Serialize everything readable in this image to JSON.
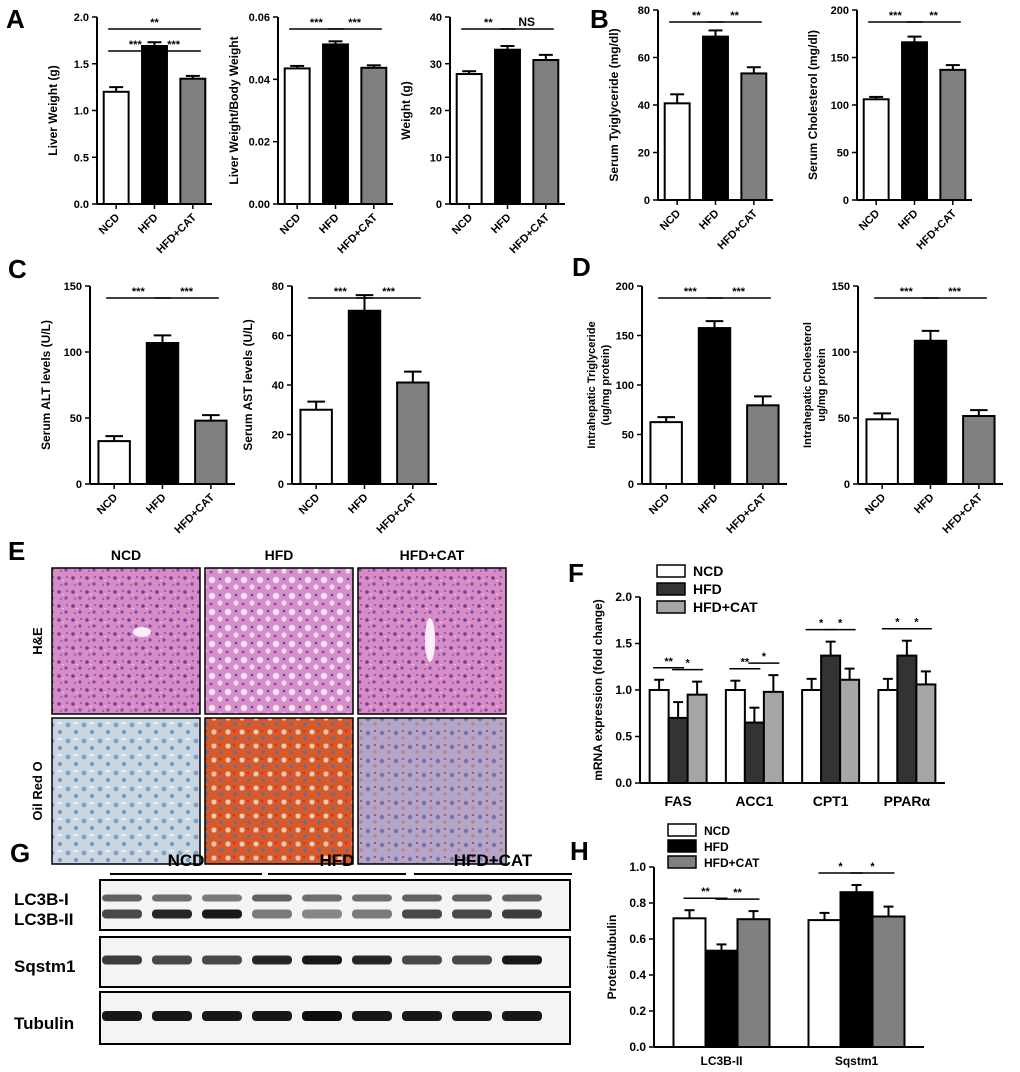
{
  "figure": {
    "groups3": [
      "NCD",
      "HFD",
      "HFD+CAT"
    ],
    "colors": {
      "NCD": "#ffffff",
      "HFD": "#000000",
      "HFD+CAT": "#808080",
      "HFD_F": "#333333",
      "HFD+CAT_F": "#a6a6a6"
    },
    "panel_letters": [
      "A",
      "B",
      "C",
      "D",
      "E",
      "F",
      "G",
      "H"
    ],
    "histology": {
      "columns": [
        "NCD",
        "HFD",
        "HFD+CAT"
      ],
      "rows": [
        "H&E",
        "Oil Red O"
      ]
    },
    "western": {
      "groups": [
        "NCD",
        "HFD",
        "HFD+CAT"
      ],
      "lanes_per_group": 3,
      "bands": [
        "LC3B-I",
        "LC3B-II",
        "Sqstm1",
        "Tubulin"
      ]
    }
  },
  "chart_data": [
    {
      "id": "A1",
      "type": "bar",
      "categories": [
        "NCD",
        "HFD",
        "HFD+CAT"
      ],
      "values": [
        1.2,
        1.69,
        1.34
      ],
      "errors": [
        0.05,
        0.04,
        0.03
      ],
      "ylabel": "Liver Weight (g)",
      "ylim": [
        0,
        2.0
      ],
      "yticks": [
        "0.0",
        "0.5",
        "1.0",
        "1.5",
        "2.0"
      ],
      "sig": [
        {
          "a": 0,
          "b": 1,
          "text": "***"
        },
        {
          "a": 1,
          "b": 2,
          "text": "***"
        },
        {
          "a": 0,
          "b": 2,
          "text": "**"
        }
      ]
    },
    {
      "id": "A2",
      "type": "bar",
      "categories": [
        "NCD",
        "HFD",
        "HFD+CAT"
      ],
      "values": [
        0.0435,
        0.0512,
        0.0437
      ],
      "errors": [
        0.0008,
        0.001,
        0.0008
      ],
      "ylabel": "Liver Weight/Body Weight",
      "ylim": [
        0,
        0.06
      ],
      "yticks": [
        "0.00",
        "0.02",
        "0.04",
        "0.06"
      ],
      "sig": [
        {
          "a": 0,
          "b": 1,
          "text": "***"
        },
        {
          "a": 1,
          "b": 2,
          "text": "***"
        }
      ]
    },
    {
      "id": "A3",
      "type": "bar",
      "categories": [
        "NCD",
        "HFD",
        "HFD+CAT"
      ],
      "values": [
        27.8,
        33.0,
        30.8
      ],
      "errors": [
        0.6,
        0.8,
        1.1
      ],
      "ylabel": "Weight (g)",
      "ylim": [
        0,
        40
      ],
      "yticks": [
        "0",
        "10",
        "20",
        "30",
        "40"
      ],
      "sig": [
        {
          "a": 0,
          "b": 1,
          "text": "**"
        },
        {
          "a": 1,
          "b": 2,
          "text": "NS"
        }
      ]
    },
    {
      "id": "B1",
      "type": "bar",
      "categories": [
        "NCD",
        "HFD",
        "HFD+CAT"
      ],
      "values": [
        40.7,
        68.8,
        53.3
      ],
      "errors": [
        3.8,
        2.6,
        2.6
      ],
      "ylabel": "Serum Tyiglyceride (mg/dl)",
      "ylim": [
        0,
        80
      ],
      "yticks": [
        "0",
        "20",
        "40",
        "60",
        "80"
      ],
      "sig": [
        {
          "a": 0,
          "b": 1,
          "text": "**"
        },
        {
          "a": 1,
          "b": 2,
          "text": "**"
        }
      ]
    },
    {
      "id": "B2",
      "type": "bar",
      "categories": [
        "NCD",
        "HFD",
        "HFD+CAT"
      ],
      "values": [
        106,
        166,
        137
      ],
      "errors": [
        2.5,
        6,
        5
      ],
      "ylabel": "Serum Cholesterol (mg/dl)",
      "ylim": [
        0,
        200
      ],
      "yticks": [
        "0",
        "50",
        "100",
        "150",
        "200"
      ],
      "sig": [
        {
          "a": 0,
          "b": 1,
          "text": "***"
        },
        {
          "a": 1,
          "b": 2,
          "text": "**"
        }
      ]
    },
    {
      "id": "C1",
      "type": "bar",
      "categories": [
        "NCD",
        "HFD",
        "HFD+CAT"
      ],
      "values": [
        32.5,
        106.8,
        48
      ],
      "errors": [
        3.8,
        5.8,
        4.2
      ],
      "ylabel": "Serum ALT levels (U/L)",
      "ylim": [
        0,
        150
      ],
      "yticks": [
        "0",
        "50",
        "100",
        "150"
      ],
      "sig": [
        {
          "a": 0,
          "b": 1,
          "text": "***"
        },
        {
          "a": 1,
          "b": 2,
          "text": "***"
        }
      ]
    },
    {
      "id": "C2",
      "type": "bar",
      "categories": [
        "NCD",
        "HFD",
        "HFD+CAT"
      ],
      "values": [
        30,
        70,
        41
      ],
      "errors": [
        3.3,
        6.3,
        4.4
      ],
      "ylabel": "Serum AST levels (U/L)",
      "ylim": [
        0,
        80
      ],
      "yticks": [
        "0",
        "20",
        "40",
        "60",
        "80"
      ],
      "sig": [
        {
          "a": 0,
          "b": 1,
          "text": "***"
        },
        {
          "a": 1,
          "b": 2,
          "text": "***"
        }
      ]
    },
    {
      "id": "D1",
      "type": "bar",
      "categories": [
        "NCD",
        "HFD",
        "HFD+CAT"
      ],
      "values": [
        62.5,
        157.5,
        79.5
      ],
      "errors": [
        5,
        7,
        9
      ],
      "ylabel": [
        "Intrahepatic Triglyceride",
        "(ug/mg protein)"
      ],
      "ylim": [
        0,
        200
      ],
      "yticks": [
        "0",
        "50",
        "100",
        "150",
        "200"
      ],
      "sig": [
        {
          "a": 0,
          "b": 1,
          "text": "***"
        },
        {
          "a": 1,
          "b": 2,
          "text": "***"
        }
      ]
    },
    {
      "id": "D2",
      "type": "bar",
      "categories": [
        "NCD",
        "HFD",
        "HFD+CAT"
      ],
      "values": [
        49,
        108.5,
        51.5
      ],
      "errors": [
        4.5,
        7.5,
        4.5
      ],
      "ylabel": [
        "Intrahepatic Cholesterol",
        "ug/mg protein"
      ],
      "ylim": [
        0,
        150
      ],
      "yticks": [
        "0",
        "50",
        "100",
        "150"
      ],
      "sig": [
        {
          "a": 0,
          "b": 1,
          "text": "***"
        },
        {
          "a": 1,
          "b": 2,
          "text": "***"
        }
      ]
    },
    {
      "id": "F",
      "type": "bar",
      "categories": [
        "FAS",
        "ACC1",
        "CPT1",
        "PPARα"
      ],
      "series": [
        {
          "name": "NCD",
          "values": [
            1.0,
            1.0,
            1.0,
            1.0
          ],
          "errors": [
            0.11,
            0.1,
            0.12,
            0.12
          ]
        },
        {
          "name": "HFD",
          "values": [
            0.7,
            0.65,
            1.37,
            1.37
          ],
          "errors": [
            0.17,
            0.16,
            0.15,
            0.16
          ]
        },
        {
          "name": "HFD+CAT",
          "values": [
            0.95,
            0.98,
            1.11,
            1.06
          ],
          "errors": [
            0.14,
            0.18,
            0.12,
            0.14
          ]
        }
      ],
      "ylabel": "mRNA expression (fold change)",
      "ylim": [
        0,
        2.0
      ],
      "yticks": [
        "0.0",
        "0.5",
        "1.0",
        "1.5",
        "2.0"
      ],
      "sig": [
        {
          "c": 0,
          "a": 0,
          "b": 1,
          "text": "**"
        },
        {
          "c": 0,
          "a": 1,
          "b": 2,
          "text": "*"
        },
        {
          "c": 1,
          "a": 0,
          "b": 1,
          "text": "**"
        },
        {
          "c": 1,
          "a": 1,
          "b": 2,
          "text": "*"
        },
        {
          "c": 2,
          "a": 0,
          "b": 1,
          "text": "*"
        },
        {
          "c": 2,
          "a": 1,
          "b": 2,
          "text": "*"
        },
        {
          "c": 3,
          "a": 0,
          "b": 1,
          "text": "*"
        },
        {
          "c": 3,
          "a": 1,
          "b": 2,
          "text": "*"
        }
      ],
      "legend": "top-left"
    },
    {
      "id": "H",
      "type": "bar",
      "categories": [
        "LC3B-II",
        "Sqstm1"
      ],
      "series": [
        {
          "name": "NCD",
          "values": [
            0.715,
            0.705
          ],
          "errors": [
            0.045,
            0.04
          ]
        },
        {
          "name": "HFD",
          "values": [
            0.535,
            0.86
          ],
          "errors": [
            0.035,
            0.04
          ]
        },
        {
          "name": "HFD+CAT",
          "values": [
            0.71,
            0.725
          ],
          "errors": [
            0.045,
            0.055
          ]
        }
      ],
      "ylabel": "Protein/tubulin",
      "ylim": [
        0,
        1.0
      ],
      "yticks": [
        "0.0",
        "0.2",
        "0.4",
        "0.6",
        "0.8",
        "1.0"
      ],
      "sig": [
        {
          "c": 0,
          "a": 0,
          "b": 1,
          "text": "**"
        },
        {
          "c": 0,
          "a": 1,
          "b": 2,
          "text": "**"
        },
        {
          "c": 1,
          "a": 0,
          "b": 1,
          "text": "*"
        },
        {
          "c": 1,
          "a": 1,
          "b": 2,
          "text": "*"
        }
      ],
      "legend": "top-left"
    }
  ]
}
